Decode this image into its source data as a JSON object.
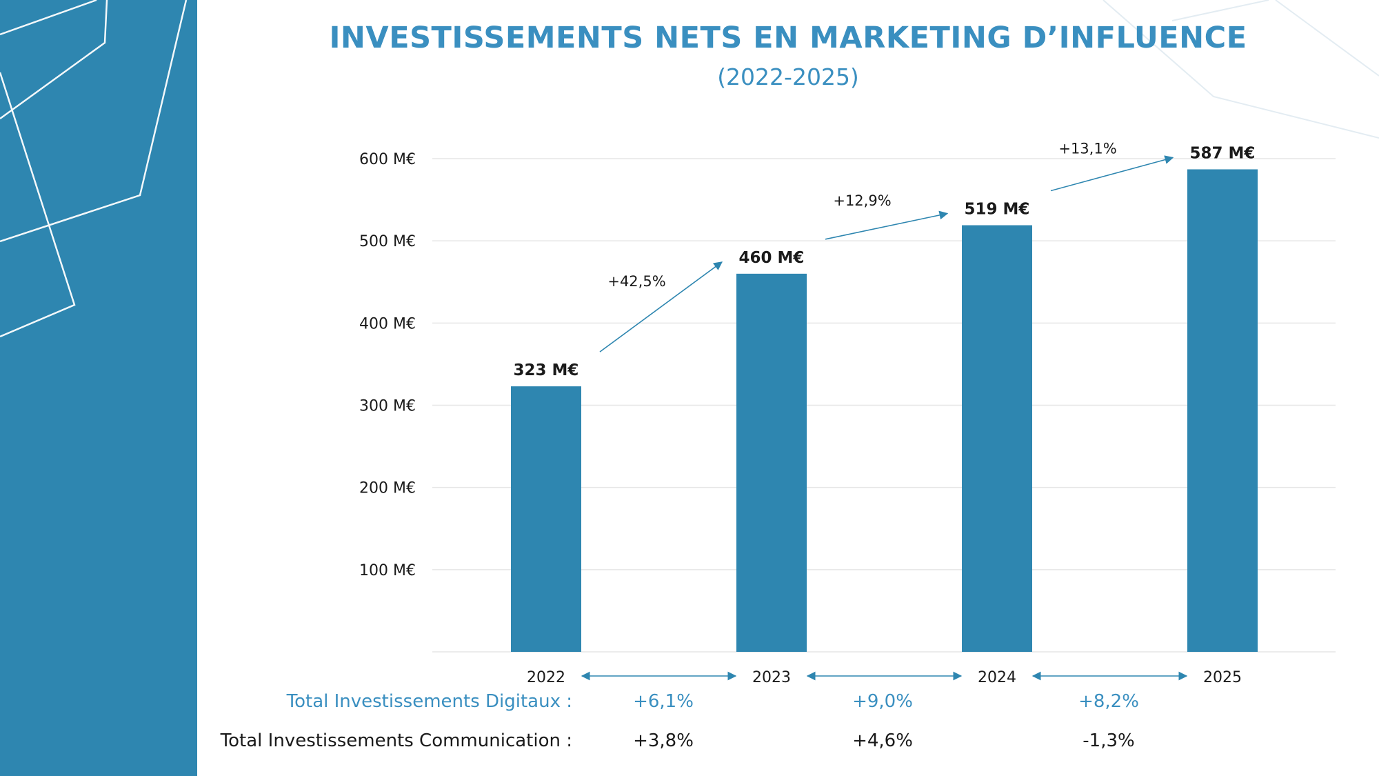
{
  "page": {
    "title": "INVESTISSEMENTS NETS EN MARKETING D’INFLUENCE",
    "subtitle": "(2022-2025)"
  },
  "colors": {
    "accent": "#2e86b0",
    "title": "#3a8fc0",
    "bar": "#2e86b0",
    "grid": "#e6e6e6",
    "text": "#1a1a1a"
  },
  "chart_data": {
    "type": "bar",
    "title": "INVESTISSEMENTS NETS EN MARKETING D’INFLUENCE",
    "subtitle": "(2022-2025)",
    "categories": [
      "2022",
      "2023",
      "2024",
      "2025"
    ],
    "values": [
      323,
      460,
      519,
      587
    ],
    "value_labels": [
      "323 M€",
      "460 M€",
      "519 M€",
      "587 M€"
    ],
    "ylim": [
      0,
      600
    ],
    "yticks": [
      100,
      200,
      300,
      400,
      500,
      600
    ],
    "ytick_labels": [
      "100 M€",
      "200 M€",
      "300 M€",
      "400 M€",
      "500 M€",
      "600 M€"
    ],
    "grid": true,
    "growth_labels": [
      "+42,5%",
      "+12,9%",
      "+13,1%"
    ],
    "xlabel": "",
    "ylabel": ""
  },
  "summary": {
    "digital": {
      "label": "Total Investissements Digitaux :",
      "values": [
        "+6,1%",
        "+9,0%",
        "+8,2%"
      ]
    },
    "communication": {
      "label": "Total Investissements Communication :",
      "values": [
        "+3,8%",
        "+4,6%",
        "-1,3%"
      ]
    }
  }
}
